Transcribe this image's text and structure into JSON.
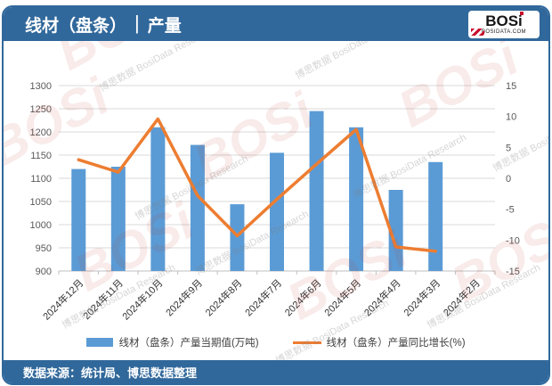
{
  "header": {
    "title_product": "线材（盘条）",
    "title_sep": "|",
    "title_metric": "产量",
    "logo": {
      "brand": "BOSi",
      "site": "BOSIDATA.COM"
    }
  },
  "chart_data": {
    "type": "bar",
    "categories": [
      "2024年12月",
      "2024年11月",
      "2024年10月",
      "2024年9月",
      "2024年8月",
      "2024年7月",
      "2024年6月",
      "2024年5月",
      "2024年4月",
      "2024年3月",
      "2024年2月"
    ],
    "series": [
      {
        "name": "线材（盘条）产量当期值(万吨)",
        "type": "bar",
        "axis": "left",
        "color": "#5B9BD5",
        "values": [
          1120,
          1125,
          1210,
          1172,
          1044,
          1155,
          1245,
          1210,
          1075,
          1135,
          null
        ]
      },
      {
        "name": "线材（盘条）产量同比增长(%)",
        "type": "line",
        "axis": "right",
        "color": "#ED7D31",
        "values": [
          3.0,
          1.0,
          9.6,
          -2.8,
          -9.3,
          -3.4,
          2.3,
          7.9,
          -11.1,
          -11.8,
          null
        ]
      }
    ],
    "left_axis": {
      "min": 900,
      "max": 1300,
      "step": 50
    },
    "right_axis": {
      "min": -15,
      "max": 15,
      "step": 5
    },
    "grid": true,
    "legend_position": "bottom",
    "title": "",
    "xlabel": "",
    "ylabel": ""
  },
  "legend": {
    "bar_label": "线材（盘条）产量当期值(万吨)",
    "line_label": "线材（盘条）产量同比增长(%)"
  },
  "footer": {
    "source": "数据来源：统计局、博思数据整理"
  },
  "watermark": {
    "brand": "BOSi",
    "note": "博思数据 BosiData Research"
  },
  "colors": {
    "header_bg": "#31689B",
    "bar": "#5B9BD5",
    "line": "#ED7D31",
    "grid": "#D9D9D9",
    "logo_red": "#C8102E",
    "tick_text": "#595959"
  }
}
